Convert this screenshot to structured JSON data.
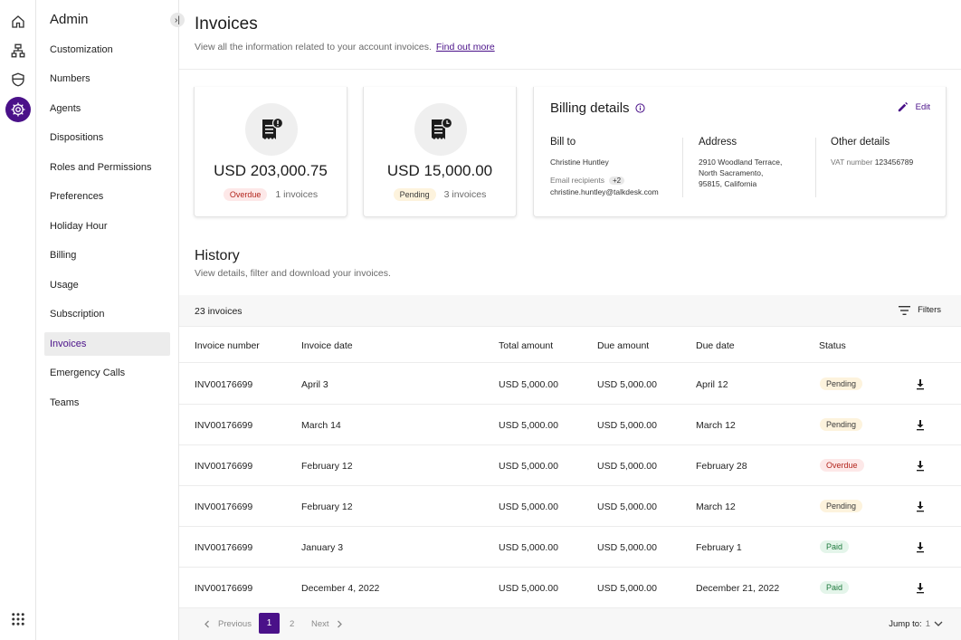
{
  "sidebar": {
    "title": "Admin",
    "items": [
      {
        "label": "Customization"
      },
      {
        "label": "Numbers"
      },
      {
        "label": "Agents"
      },
      {
        "label": "Dispositions"
      },
      {
        "label": "Roles and Permissions"
      },
      {
        "label": "Preferences"
      },
      {
        "label": "Holiday Hour"
      },
      {
        "label": "Billing"
      },
      {
        "label": "Usage"
      },
      {
        "label": "Subscription"
      },
      {
        "label": "Invoices",
        "active": true
      },
      {
        "label": "Emergency Calls"
      },
      {
        "label": "Teams"
      }
    ]
  },
  "header": {
    "title": "Invoices",
    "subtitle": "View all the information related to your account invoices.",
    "link": "Find out more"
  },
  "summary": {
    "overdue": {
      "amount": "USD 203,000.75",
      "badge": "Overdue",
      "count": "1 invoices"
    },
    "pending": {
      "amount": "USD 15,000.00",
      "badge": "Pending",
      "count": "3 invoices"
    }
  },
  "billing": {
    "title": "Billing details",
    "edit_label": "Edit",
    "bill_to": {
      "heading": "Bill to",
      "name": "Christine Huntley",
      "recipients_label": "Email recipients",
      "recipients_extra": "+2",
      "email": "christine.huntley@talkdesk.com"
    },
    "address": {
      "heading": "Address",
      "line1": "2910 Woodland Terrace,",
      "line2": "North Sacramento,",
      "line3": "95815, California"
    },
    "other": {
      "heading": "Other details",
      "vat_label": "VAT number",
      "vat_value": "123456789"
    }
  },
  "history": {
    "title": "History",
    "subtitle": "View details, filter and download your invoices.",
    "count": "23 invoices",
    "filters_label": "Filters",
    "columns": [
      "Invoice number",
      "Invoice date",
      "Total amount",
      "Due amount",
      "Due date",
      "Status"
    ],
    "rows": [
      {
        "number": "INV00176699",
        "date": "April 3",
        "total": "USD 5,000.00",
        "due_amount": "USD 5,000.00",
        "due_date": "April 12",
        "status": "Pending"
      },
      {
        "number": "INV00176699",
        "date": "March 14",
        "total": "USD 5,000.00",
        "due_amount": "USD 5,000.00",
        "due_date": "March 12",
        "status": "Pending"
      },
      {
        "number": "INV00176699",
        "date": "February 12",
        "total": "USD 5,000.00",
        "due_amount": "USD 5,000.00",
        "due_date": "February 28",
        "status": "Overdue"
      },
      {
        "number": "INV00176699",
        "date": "February 12",
        "total": "USD 5,000.00",
        "due_amount": "USD 5,000.00",
        "due_date": "March 12",
        "status": "Pending"
      },
      {
        "number": "INV00176699",
        "date": "January 3",
        "total": "USD 5,000.00",
        "due_amount": "USD 5,000.00",
        "due_date": "February 1",
        "status": "Paid"
      },
      {
        "number": "INV00176699",
        "date": "December 4, 2022",
        "total": "USD 5,000.00",
        "due_amount": "USD 5,000.00",
        "due_date": "December 21, 2022",
        "status": "Paid"
      }
    ]
  },
  "pagination": {
    "previous": "Previous",
    "pages": [
      "1",
      "2"
    ],
    "current": "1",
    "next": "Next",
    "jump_label": "Jump to:",
    "jump_value": "1"
  },
  "colors": {
    "accent": "#4a1189",
    "overdue": "#b3261e",
    "paid": "#1f7a3e",
    "pending_bg": "#fdf3dd"
  },
  "icons": [
    "home-icon",
    "flow-icon",
    "shield-icon",
    "gear-icon",
    "apps-grid-icon",
    "receipt-alert-icon",
    "receipt-clock-icon",
    "info-icon",
    "pencil-icon",
    "filter-icon",
    "download-icon",
    "chevron-left-icon",
    "chevron-right-icon",
    "chevron-down-icon"
  ]
}
